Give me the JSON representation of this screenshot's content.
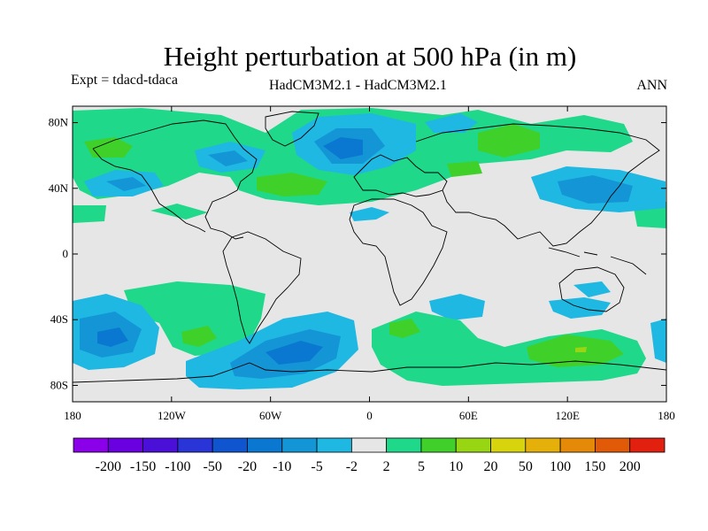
{
  "title": "Height perturbation at 500 hPa (in m)",
  "experiment_label": "Expt = tdacd-tdaca",
  "model_label": "HadCM3M2.1 - HadCM3M2.1",
  "season_label": "ANN",
  "map": {
    "projection": "cylindrical equidistant",
    "lon_range": [
      -180,
      180
    ],
    "lat_range": [
      -90,
      90
    ],
    "x_ticks": [
      "180",
      "120W",
      "60W",
      "0",
      "60E",
      "120E",
      "180"
    ],
    "y_ticks": [
      "80N",
      "40N",
      "0",
      "40S",
      "80S"
    ],
    "background_color": "#e6e6e6",
    "coastline_color": "#000000"
  },
  "colorbar": {
    "labels": [
      "-200",
      "-150",
      "-100",
      "-50",
      "-20",
      "-10",
      "-5",
      "-2",
      "2",
      "5",
      "10",
      "20",
      "50",
      "100",
      "150",
      "200"
    ],
    "colors": [
      "#8a00e8",
      "#6a00e0",
      "#4b10d8",
      "#2a35d8",
      "#0f55d0",
      "#0a78d0",
      "#1496d6",
      "#1eb8e2",
      "#e6e6e6",
      "#1fd88a",
      "#40d02a",
      "#98d614",
      "#d7d40e",
      "#e6b00a",
      "#e48a08",
      "#e05a08",
      "#e22010"
    ]
  }
}
